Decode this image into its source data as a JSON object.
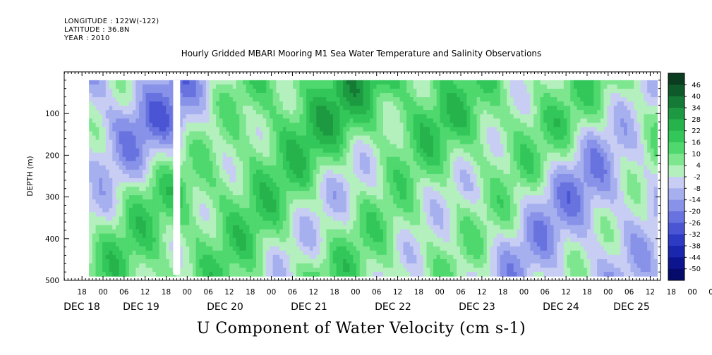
{
  "header": {
    "longitude": "LONGITUDE : 122W(-122)",
    "latitude": "LATITUDE : 36.8N",
    "year": "YEAR : 2010"
  },
  "chart_data": {
    "type": "heatmap",
    "title": "Hourly Gridded MBARI Mooring M1 Sea Water Temperature and Salinity Observations",
    "caption": "U Component of Water Velocity (cm s-1)",
    "ylabel": "DEPTH (m)",
    "ylim": [
      500,
      0
    ],
    "y_ticks": [
      100,
      200,
      300,
      400,
      500
    ],
    "x_hour_ticks": [
      "18",
      "00",
      "06",
      "12",
      "18",
      "00",
      "06",
      "12",
      "18",
      "00",
      "06",
      "12",
      "18",
      "00",
      "06",
      "12",
      "18",
      "00",
      "06",
      "12",
      "18",
      "00",
      "06",
      "12",
      "18",
      "00",
      "06",
      "12",
      "18",
      "00",
      "06",
      "12"
    ],
    "x_day_labels": [
      "DEC 18",
      "DEC 19",
      "DEC 20",
      "DEC 21",
      "DEC 22",
      "DEC 23",
      "DEC 24",
      "DEC 25"
    ],
    "colorbar": {
      "levels": [
        "46",
        "40",
        "34",
        "28",
        "22",
        "16",
        "10",
        "4",
        "-2",
        "-8",
        "-14",
        "-20",
        "-26",
        "-32",
        "-38",
        "-44",
        "-50"
      ],
      "range": [
        -50,
        52
      ]
    },
    "data_start": "DEC 18 20:00",
    "data_end": "DEC 25 14:00",
    "depth_min": 20,
    "depth_max": 490,
    "data_gap": "DEC 19 20:00 – 22:00",
    "time_series": [
      {
        "day": "DEC 18 20:00–DEC 19 04:00",
        "upper_0_200m": -10,
        "lower_200_490m": 8
      },
      {
        "day": "DEC 19",
        "upper_0_200m": -8,
        "lower_200_490m": 10
      },
      {
        "day": "DEC 20",
        "upper_0_200m": 12,
        "lower_200_490m": 12
      },
      {
        "day": "DEC 21",
        "upper_0_200m": 18,
        "lower_200_490m": 8
      },
      {
        "day": "DEC 22",
        "upper_0_200m": 20,
        "lower_200_490m": 4
      },
      {
        "day": "DEC 23",
        "upper_0_200m": 10,
        "lower_200_490m": 2
      },
      {
        "day": "DEC 24",
        "upper_0_200m": 4,
        "lower_200_490m": -6
      },
      {
        "day": "DEC 25",
        "upper_0_200m": 12,
        "lower_200_490m": -2
      }
    ]
  }
}
